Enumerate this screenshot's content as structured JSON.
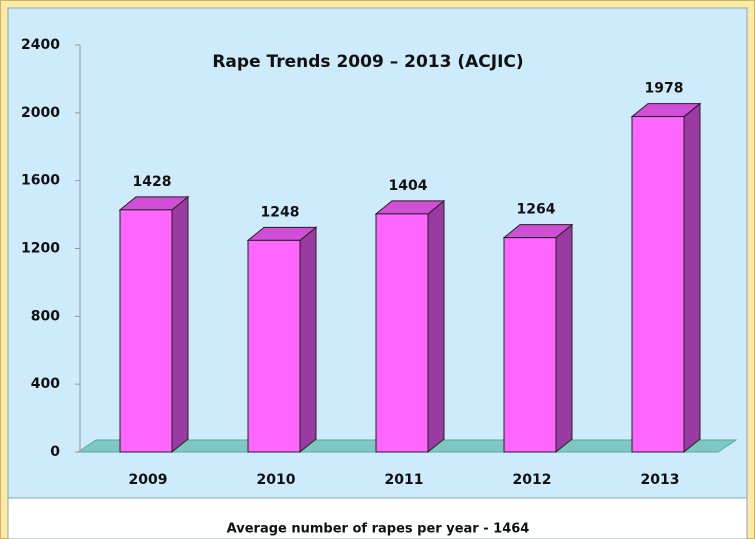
{
  "chart_data": {
    "type": "bar",
    "title": "Rape Trends 2009 – 2013 (ACJIC)",
    "categories": [
      "2009",
      "2010",
      "2011",
      "2012",
      "2013"
    ],
    "values": [
      1428,
      1248,
      1404,
      1264,
      1978
    ],
    "color": "#ff66ff",
    "ylim": [
      0,
      2400
    ],
    "yticks": [
      0,
      400,
      800,
      1200,
      1600,
      2000,
      2400
    ],
    "note": "Average number of rapes per year - 1464"
  }
}
